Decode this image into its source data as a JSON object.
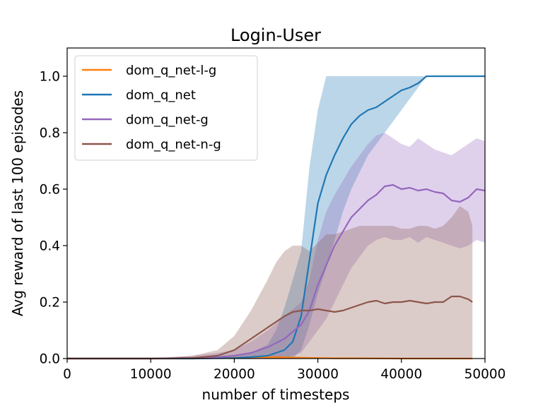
{
  "chart_data": {
    "type": "line",
    "title": "Login-User",
    "xlabel": "number of timesteps",
    "ylabel": "Avg reward of last 100 episodes",
    "xlim": [
      0,
      50000
    ],
    "ylim": [
      0,
      1.1
    ],
    "xticks": [
      0,
      10000,
      20000,
      30000,
      40000,
      50000
    ],
    "yticks": [
      0.0,
      0.2,
      0.4,
      0.6,
      0.8,
      1.0
    ],
    "xtick_labels": [
      "0",
      "10000",
      "20000",
      "30000",
      "40000",
      "50000"
    ],
    "ytick_labels": [
      "0.0",
      "0.2",
      "0.4",
      "0.6",
      "0.8",
      "1.0"
    ],
    "grid": false,
    "legend_position": "top-left",
    "series": [
      {
        "name": "dom_q_net-l-g",
        "color": "#ff7f0e",
        "x": [
          0,
          5000,
          10000,
          15000,
          20000,
          22000,
          24000,
          26000,
          28000,
          30000,
          32000,
          35000,
          40000,
          45000,
          48500
        ],
        "y": [
          0,
          0,
          0,
          0,
          0.003,
          0.004,
          0.005,
          0.004,
          0.003,
          0.002,
          0.001,
          0.001,
          0,
          0,
          0
        ],
        "band_upper": [
          0,
          0,
          0,
          0.002,
          0.006,
          0.008,
          0.01,
          0.008,
          0.006,
          0.004,
          0.003,
          0.002,
          0.001,
          0.001,
          0.001
        ],
        "band_lower": [
          0,
          0,
          0,
          0,
          0,
          0,
          0,
          0,
          0,
          0,
          0,
          0,
          0,
          0,
          0
        ]
      },
      {
        "name": "dom_q_net",
        "color": "#1f77b4",
        "x": [
          0,
          10000,
          15000,
          20000,
          22000,
          24000,
          25000,
          26000,
          27000,
          28000,
          29000,
          30000,
          31000,
          32000,
          33000,
          34000,
          35000,
          36000,
          37000,
          38000,
          39000,
          40000,
          41000,
          42000,
          43000,
          45000,
          50000
        ],
        "y": [
          0,
          0,
          0,
          0.002,
          0.005,
          0.01,
          0.02,
          0.03,
          0.06,
          0.15,
          0.35,
          0.55,
          0.65,
          0.72,
          0.78,
          0.83,
          0.86,
          0.88,
          0.89,
          0.91,
          0.93,
          0.95,
          0.96,
          0.975,
          1.0,
          1.0,
          1.0
        ],
        "band_upper": [
          0,
          0,
          0,
          0.01,
          0.02,
          0.05,
          0.1,
          0.18,
          0.28,
          0.38,
          0.68,
          0.88,
          1.0,
          1.0,
          1.0,
          1.0,
          1.0,
          1.0,
          1.0,
          1.0,
          1.0,
          1.0,
          1.0,
          1.0,
          1.0,
          1.0,
          1.0
        ],
        "band_lower": [
          0,
          0,
          0,
          0,
          0,
          0,
          0,
          0,
          0,
          0.03,
          0.12,
          0.23,
          0.32,
          0.42,
          0.52,
          0.6,
          0.66,
          0.72,
          0.76,
          0.8,
          0.84,
          0.88,
          0.92,
          0.96,
          1.0,
          1.0,
          1.0
        ]
      },
      {
        "name": "dom_q_net-g",
        "color": "#9467bd",
        "x": [
          0,
          10000,
          15000,
          18000,
          20000,
          22000,
          24000,
          26000,
          28000,
          29000,
          30000,
          31000,
          32000,
          33000,
          34000,
          35000,
          36000,
          37000,
          38000,
          39000,
          40000,
          41000,
          42000,
          43000,
          44000,
          45000,
          46000,
          47000,
          48000,
          49000,
          50000
        ],
        "y": [
          0,
          0,
          0.002,
          0.005,
          0.01,
          0.02,
          0.04,
          0.07,
          0.12,
          0.17,
          0.26,
          0.33,
          0.4,
          0.45,
          0.5,
          0.53,
          0.56,
          0.58,
          0.61,
          0.615,
          0.6,
          0.605,
          0.595,
          0.6,
          0.59,
          0.585,
          0.56,
          0.555,
          0.57,
          0.6,
          0.595
        ],
        "band_upper": [
          0,
          0,
          0.01,
          0.02,
          0.03,
          0.06,
          0.1,
          0.15,
          0.2,
          0.28,
          0.42,
          0.52,
          0.58,
          0.63,
          0.68,
          0.72,
          0.76,
          0.79,
          0.8,
          0.78,
          0.76,
          0.75,
          0.78,
          0.76,
          0.74,
          0.73,
          0.72,
          0.74,
          0.76,
          0.78,
          0.77
        ],
        "band_lower": [
          0,
          0,
          0,
          0,
          0,
          0,
          0,
          0,
          0.02,
          0.06,
          0.1,
          0.14,
          0.2,
          0.26,
          0.32,
          0.36,
          0.4,
          0.42,
          0.43,
          0.42,
          0.42,
          0.43,
          0.41,
          0.43,
          0.42,
          0.41,
          0.4,
          0.39,
          0.4,
          0.42,
          0.41
        ]
      },
      {
        "name": "dom_q_net-n-g",
        "color": "#8c564b",
        "x": [
          0,
          10000,
          15000,
          18000,
          20000,
          22000,
          24000,
          25000,
          26000,
          27000,
          28000,
          29000,
          30000,
          31000,
          32000,
          33000,
          34000,
          35000,
          36000,
          37000,
          38000,
          39000,
          40000,
          41000,
          42000,
          43000,
          44000,
          45000,
          46000,
          47000,
          48000,
          48500
        ],
        "y": [
          0,
          0,
          0.002,
          0.01,
          0.03,
          0.07,
          0.11,
          0.13,
          0.15,
          0.165,
          0.17,
          0.17,
          0.175,
          0.17,
          0.165,
          0.17,
          0.18,
          0.19,
          0.2,
          0.205,
          0.195,
          0.2,
          0.2,
          0.205,
          0.2,
          0.195,
          0.2,
          0.2,
          0.22,
          0.22,
          0.21,
          0.2
        ],
        "band_upper": [
          0,
          0,
          0.01,
          0.03,
          0.08,
          0.17,
          0.28,
          0.34,
          0.38,
          0.4,
          0.4,
          0.38,
          0.41,
          0.44,
          0.44,
          0.45,
          0.46,
          0.47,
          0.47,
          0.47,
          0.47,
          0.47,
          0.46,
          0.46,
          0.47,
          0.47,
          0.46,
          0.47,
          0.5,
          0.54,
          0.52,
          0.47
        ],
        "band_lower": [
          0,
          0,
          0,
          0,
          0,
          0,
          0,
          0,
          0,
          0,
          0,
          0,
          0,
          0,
          0,
          0,
          0,
          0,
          0,
          0,
          0,
          0,
          0,
          0,
          0,
          0,
          0,
          0,
          0,
          0,
          0,
          0
        ]
      }
    ]
  }
}
